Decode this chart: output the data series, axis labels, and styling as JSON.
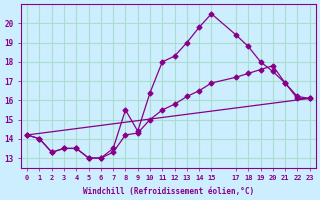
{
  "xlabel": "Windchill (Refroidissement éolien,°C)",
  "bg_color": "#cceeff",
  "grid_color": "#aaddcc",
  "line_color": "#880088",
  "xlim": [
    -0.5,
    23.5
  ],
  "ylim": [
    12.5,
    21.0
  ],
  "yticks": [
    13,
    14,
    15,
    16,
    17,
    18,
    19,
    20
  ],
  "xticks": [
    0,
    1,
    2,
    3,
    4,
    5,
    6,
    7,
    8,
    9,
    10,
    11,
    12,
    13,
    14,
    15,
    17,
    18,
    19,
    20,
    21,
    22,
    23
  ],
  "xtick_labels": [
    "0",
    "1",
    "2",
    "3",
    "4",
    "5",
    "6",
    "7",
    "8",
    "9",
    "10",
    "11",
    "12",
    "13",
    "14",
    "15",
    "17",
    "18",
    "19",
    "20",
    "21",
    "22",
    "23"
  ],
  "series": [
    {
      "x": [
        0,
        1,
        2,
        3,
        4,
        5,
        6,
        7,
        8,
        9,
        10,
        11,
        12,
        13,
        14,
        15,
        17,
        18,
        19,
        20,
        21,
        22,
        23
      ],
      "y": [
        14.2,
        14.0,
        13.3,
        13.5,
        13.5,
        13.0,
        13.0,
        13.5,
        15.5,
        14.4,
        16.4,
        18.0,
        18.3,
        19.0,
        19.8,
        20.5,
        19.4,
        18.8,
        18.0,
        17.5,
        16.9,
        16.1,
        16.1
      ],
      "markers": true
    },
    {
      "x": [
        0,
        1,
        2,
        3,
        4,
        5,
        6,
        7,
        8,
        9,
        10,
        11,
        12,
        13,
        14,
        15,
        17,
        18,
        19,
        20,
        21,
        22,
        23
      ],
      "y": [
        14.2,
        14.0,
        13.3,
        13.5,
        13.5,
        13.0,
        13.0,
        13.3,
        14.2,
        14.3,
        15.0,
        15.5,
        15.8,
        16.2,
        16.5,
        16.9,
        17.2,
        17.4,
        17.6,
        17.8,
        16.9,
        16.2,
        16.1
      ],
      "markers": true
    },
    {
      "x": [
        0,
        23
      ],
      "y": [
        14.2,
        16.1
      ],
      "markers": false
    }
  ]
}
